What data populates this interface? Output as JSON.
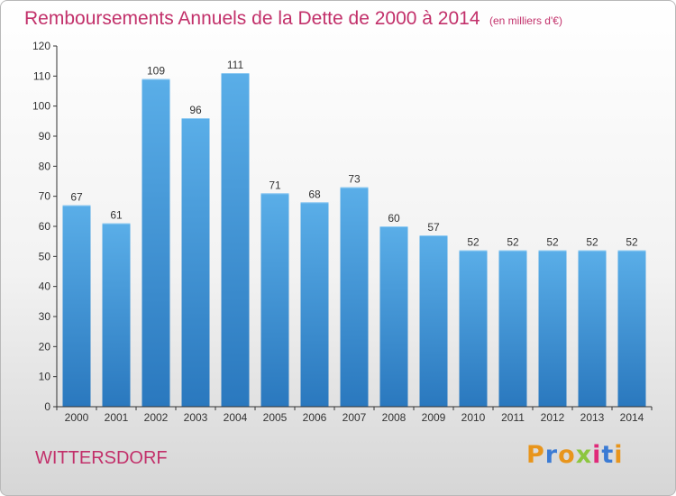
{
  "title": "Remboursements Annuels de la Dette de 2000 à 2014",
  "unit": "(en milliers d'€)",
  "commune": "WITTERSDORF",
  "logo": "Proxiti",
  "colors": {
    "title": "#c2306a",
    "bar_top": "#5aaee8",
    "bar_bottom": "#2a78be",
    "axis": "#333333",
    "grid": "#d0d0d0"
  },
  "chart_data": {
    "type": "bar",
    "title": "Remboursements Annuels de la Dette de 2000 à 2014",
    "xlabel": "",
    "ylabel": "",
    "categories": [
      "2000",
      "2001",
      "2002",
      "2003",
      "2004",
      "2005",
      "2006",
      "2007",
      "2008",
      "2009",
      "2010",
      "2011",
      "2012",
      "2013",
      "2014"
    ],
    "values": [
      67,
      61,
      109,
      96,
      111,
      71,
      68,
      73,
      60,
      57,
      52,
      52,
      52,
      52,
      52
    ],
    "ylim": [
      0,
      120
    ],
    "yticks": [
      0,
      10,
      20,
      30,
      40,
      50,
      60,
      70,
      80,
      90,
      100,
      110,
      120
    ],
    "grid": false,
    "data_labels": true
  }
}
